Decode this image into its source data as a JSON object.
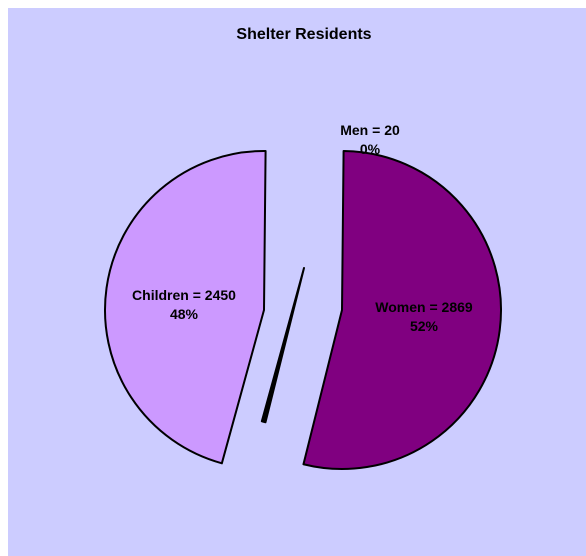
{
  "chart_data": {
    "type": "pie",
    "title": "Shelter Residents",
    "slices": [
      {
        "category": "Women",
        "value": 2869,
        "percent": "52%",
        "label_line1": "Women = 2869",
        "label_line2": "52%",
        "color": "#800080"
      },
      {
        "category": "Men",
        "value": 20,
        "percent": "0%",
        "label_line1": "Men = 20",
        "label_line2": "0%",
        "color": "#000000"
      },
      {
        "category": "Children",
        "value": 2450,
        "percent": "48%",
        "label_line1": "Children = 2450",
        "label_line2": "48%",
        "color": "#cc99ff"
      }
    ],
    "exploded": true,
    "legend": "none",
    "background_color": "#ccccff"
  }
}
